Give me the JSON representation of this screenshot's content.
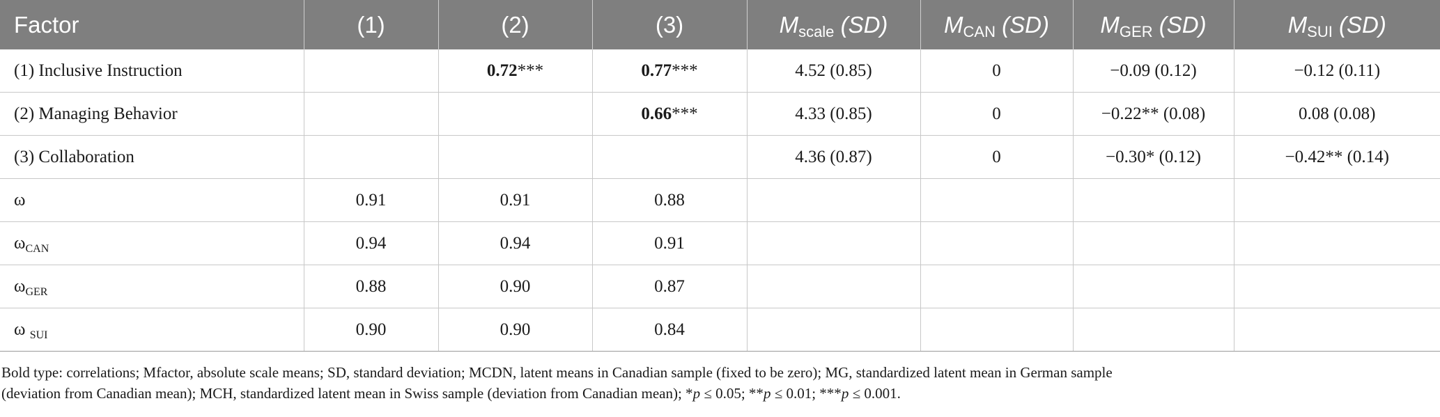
{
  "table": {
    "headers": {
      "factor": "Factor",
      "c1": "(1)",
      "c2": "(2)",
      "c3": "(3)",
      "mscale": {
        "main": "M",
        "sub": "scale",
        "tail": "(SD)"
      },
      "mcan": {
        "main": "M",
        "sub": "CAN",
        "tail": "(SD)"
      },
      "mger": {
        "main": "M",
        "sub": "GER",
        "tail": "(SD)"
      },
      "msui": {
        "main": "M",
        "sub": "SUI",
        "tail": "(SD)"
      }
    },
    "rows": [
      {
        "label": "(1) Inclusive Instruction",
        "c1": {
          "bold": "",
          "stars": ""
        },
        "c2": {
          "bold": "0.72",
          "stars": "***"
        },
        "c3": {
          "bold": "0.77",
          "stars": "***"
        },
        "mscale": "4.52 (0.85)",
        "mcan": "0",
        "mger": "−0.09 (0.12)",
        "msui": "−0.12 (0.11)"
      },
      {
        "label": "(2) Managing Behavior",
        "c1": {
          "bold": "",
          "stars": ""
        },
        "c2": {
          "bold": "",
          "stars": ""
        },
        "c3": {
          "bold": "0.66",
          "stars": "***"
        },
        "mscale": "4.33 (0.85)",
        "mcan": "0",
        "mger": "−0.22** (0.08)",
        "msui": "0.08 (0.08)"
      },
      {
        "label": "(3) Collaboration",
        "c1": {
          "bold": "",
          "stars": ""
        },
        "c2": {
          "bold": "",
          "stars": ""
        },
        "c3": {
          "bold": "",
          "stars": ""
        },
        "mscale": "4.36 (0.87)",
        "mcan": "0",
        "mger": "−0.30* (0.12)",
        "msui": "−0.42** (0.14)"
      }
    ],
    "omega_rows": [
      {
        "symbol": "ω",
        "sub": "",
        "c1": "0.91",
        "c2": "0.91",
        "c3": "0.88"
      },
      {
        "symbol": "ω",
        "sub": "CAN",
        "c1": "0.94",
        "c2": "0.94",
        "c3": "0.91"
      },
      {
        "symbol": "ω",
        "sub": "GER",
        "c1": "0.88",
        "c2": "0.90",
        "c3": "0.87"
      },
      {
        "symbol": "ω ",
        "sub": "SUI",
        "c1": "0.90",
        "c2": "0.90",
        "c3": "0.84"
      }
    ]
  },
  "footnote": {
    "line1": "Bold type: correlations; Mfactor, absolute scale means; SD, standard deviation; MCDN, latent means in Canadian sample (fixed to be zero); MG, standardized latent mean in German sample",
    "line2_a": "(deviation from Canadian mean); MCH, standardized latent mean in Swiss sample (deviation from Canadian mean); *",
    "p1": "p",
    "line2_b": " ≤ 0.05; **",
    "p2": "p",
    "line2_c": " ≤ 0.01; ***",
    "p3": "p",
    "line2_d": " ≤ 0.001."
  }
}
